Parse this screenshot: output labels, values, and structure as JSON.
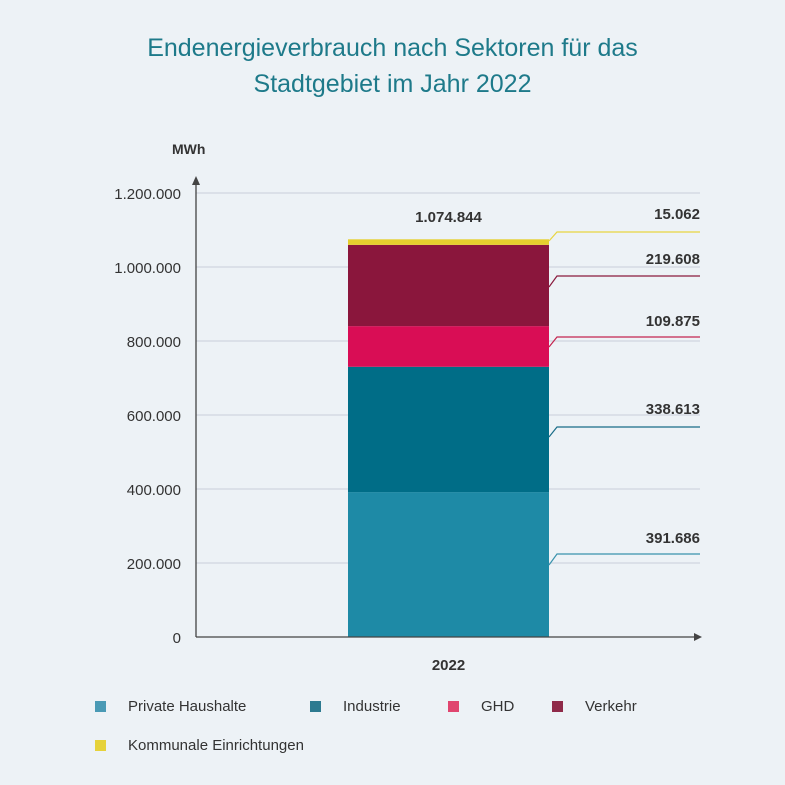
{
  "title_line1": "Endenergieverbrauch nach Sektoren für das",
  "title_line2": "Stadtgebiet im Jahr 2022",
  "chart_data": {
    "type": "bar",
    "stacked": true,
    "unit_label": "MWh",
    "categories": [
      "2022"
    ],
    "ylim": [
      0,
      1200000
    ],
    "yticks": [
      0,
      200000,
      400000,
      600000,
      800000,
      1000000,
      1200000
    ],
    "ytick_labels": [
      "0",
      "200.000",
      "400.000",
      "600.000",
      "800.000",
      "1.000.000",
      "1.200.000"
    ],
    "total_label": "1.074.844",
    "total": 1074844,
    "grid": true,
    "legend_position": "bottom",
    "series": [
      {
        "name": "Private Haushalte",
        "values": [
          391686
        ],
        "label": "391.686",
        "color": "#1e8aa6",
        "line_color": "#3a93ad",
        "legend_color": "#4a9ab5"
      },
      {
        "name": "Industrie",
        "values": [
          338613
        ],
        "label": "338.613",
        "color": "#006d87",
        "line_color": "#1a6d88",
        "legend_color": "#2d7a90"
      },
      {
        "name": "GHD",
        "values": [
          109875
        ],
        "label": "109.875",
        "color": "#d90d55",
        "line_color": "#c4244f",
        "legend_color": "#e0456f"
      },
      {
        "name": "Verkehr",
        "values": [
          219608
        ],
        "label": "219.608",
        "color": "#8a163c",
        "line_color": "#8a1b3e",
        "legend_color": "#8f2a49"
      },
      {
        "name": "Kommunale Einrichtungen",
        "values": [
          15062
        ],
        "label": "15.062",
        "color": "#e5cf2e",
        "line_color": "#e8d541",
        "legend_color": "#e6d23a"
      }
    ]
  }
}
